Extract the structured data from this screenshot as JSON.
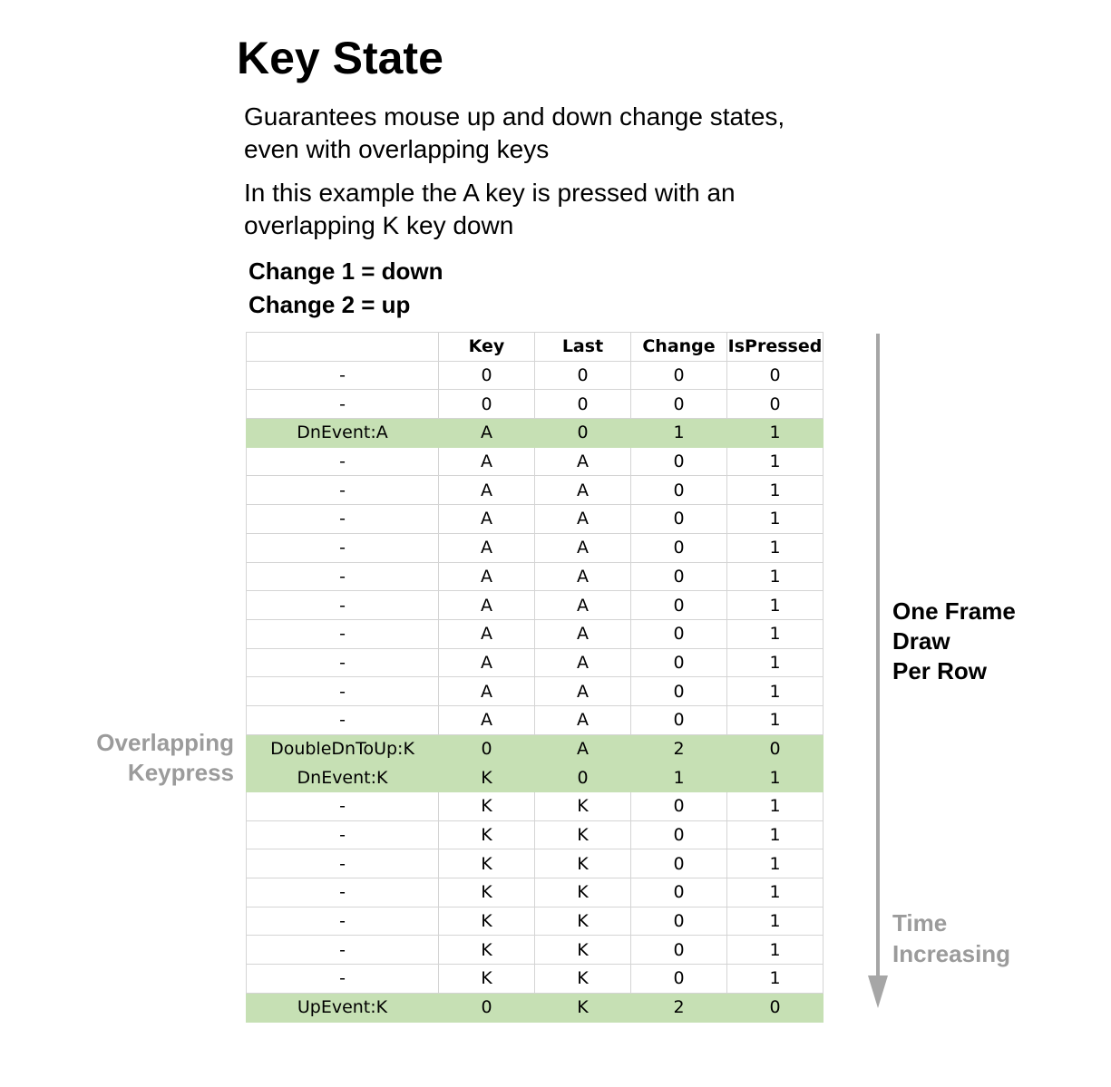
{
  "title": "Key State",
  "paragraphs": [
    "Guarantees mouse up and down change states, even with overlapping keys",
    "In this example the A key is pressed with an overlapping K key down"
  ],
  "legend": [
    "Change 1 = down",
    "Change 2 = up"
  ],
  "table": {
    "headers": [
      "",
      "Key",
      "Last",
      "Change",
      "IsPressed"
    ],
    "highlight_color": "#c6e0b4",
    "rows": [
      {
        "event": "-",
        "key": "0",
        "last": "0",
        "change": "0",
        "ispressed": "0",
        "highlight": false
      },
      {
        "event": "-",
        "key": "0",
        "last": "0",
        "change": "0",
        "ispressed": "0",
        "highlight": false
      },
      {
        "event": "DnEvent:A",
        "key": "A",
        "last": "0",
        "change": "1",
        "ispressed": "1",
        "highlight": true
      },
      {
        "event": "-",
        "key": "A",
        "last": "A",
        "change": "0",
        "ispressed": "1",
        "highlight": false
      },
      {
        "event": "-",
        "key": "A",
        "last": "A",
        "change": "0",
        "ispressed": "1",
        "highlight": false
      },
      {
        "event": "-",
        "key": "A",
        "last": "A",
        "change": "0",
        "ispressed": "1",
        "highlight": false
      },
      {
        "event": "-",
        "key": "A",
        "last": "A",
        "change": "0",
        "ispressed": "1",
        "highlight": false
      },
      {
        "event": "-",
        "key": "A",
        "last": "A",
        "change": "0",
        "ispressed": "1",
        "highlight": false
      },
      {
        "event": "-",
        "key": "A",
        "last": "A",
        "change": "0",
        "ispressed": "1",
        "highlight": false
      },
      {
        "event": "-",
        "key": "A",
        "last": "A",
        "change": "0",
        "ispressed": "1",
        "highlight": false
      },
      {
        "event": "-",
        "key": "A",
        "last": "A",
        "change": "0",
        "ispressed": "1",
        "highlight": false
      },
      {
        "event": "-",
        "key": "A",
        "last": "A",
        "change": "0",
        "ispressed": "1",
        "highlight": false
      },
      {
        "event": "-",
        "key": "A",
        "last": "A",
        "change": "0",
        "ispressed": "1",
        "highlight": false
      },
      {
        "event": "DoubleDnToUp:K",
        "key": "0",
        "last": "A",
        "change": "2",
        "ispressed": "0",
        "highlight": true
      },
      {
        "event": "DnEvent:K",
        "key": "K",
        "last": "0",
        "change": "1",
        "ispressed": "1",
        "highlight": true
      },
      {
        "event": "-",
        "key": "K",
        "last": "K",
        "change": "0",
        "ispressed": "1",
        "highlight": false
      },
      {
        "event": "-",
        "key": "K",
        "last": "K",
        "change": "0",
        "ispressed": "1",
        "highlight": false
      },
      {
        "event": "-",
        "key": "K",
        "last": "K",
        "change": "0",
        "ispressed": "1",
        "highlight": false
      },
      {
        "event": "-",
        "key": "K",
        "last": "K",
        "change": "0",
        "ispressed": "1",
        "highlight": false
      },
      {
        "event": "-",
        "key": "K",
        "last": "K",
        "change": "0",
        "ispressed": "1",
        "highlight": false
      },
      {
        "event": "-",
        "key": "K",
        "last": "K",
        "change": "0",
        "ispressed": "1",
        "highlight": false
      },
      {
        "event": "-",
        "key": "K",
        "last": "K",
        "change": "0",
        "ispressed": "1",
        "highlight": false
      },
      {
        "event": "UpEvent:K",
        "key": "0",
        "last": "K",
        "change": "2",
        "ispressed": "0",
        "highlight": true
      }
    ]
  },
  "side_label": [
    "Overlapping",
    "Keypress"
  ],
  "frame_label": [
    "One Frame",
    "Draw",
    "Per Row"
  ],
  "time_label": [
    "Time",
    "Increasing"
  ],
  "colors": {
    "annotation_gray": "#9b9b9b",
    "arrow_gray": "#a6a6a6"
  }
}
